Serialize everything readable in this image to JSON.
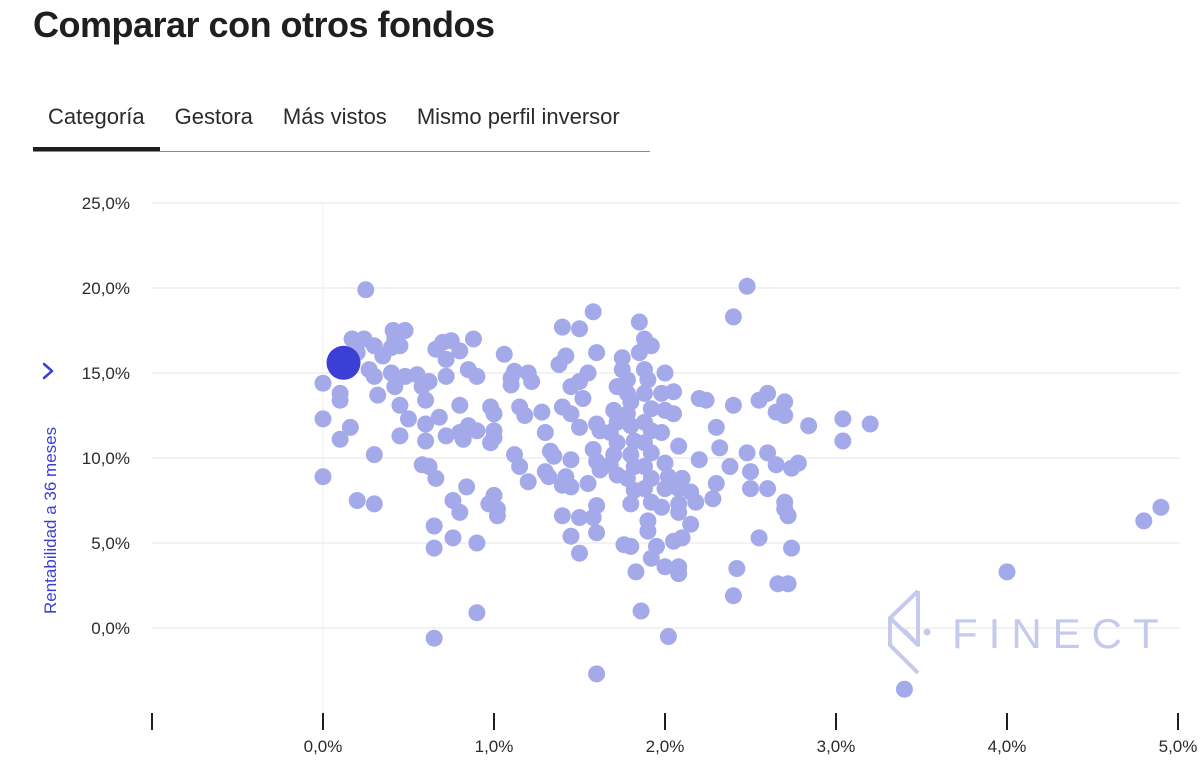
{
  "header": {
    "title": "Comparar con otros fondos"
  },
  "tabs": [
    {
      "label": "Categoría",
      "active": true
    },
    {
      "label": "Gestora",
      "active": false
    },
    {
      "label": "Más vistos",
      "active": false
    },
    {
      "label": "Mismo perfil inversor",
      "active": false
    }
  ],
  "watermark": {
    "text": "FINECT"
  },
  "colors": {
    "point": "#a4aae9",
    "highlight": "#3b3fd6",
    "grid": "#e6e6e6",
    "axis_label": "#3b3fd6"
  },
  "chart_data": {
    "type": "scatter",
    "xlabel": "",
    "ylabel": "Rentabilidad a 36 meses",
    "ylabel_icon": "chevron-right-icon",
    "xlim": [
      -1.0,
      5.1
    ],
    "ylim": [
      -5.0,
      25.0
    ],
    "x_ticks": [
      {
        "value": 0,
        "label": "0,0%"
      },
      {
        "value": 1,
        "label": "1,0%"
      },
      {
        "value": 2,
        "label": "2,0%"
      },
      {
        "value": 3,
        "label": "3,0%"
      },
      {
        "value": 4,
        "label": "4,0%"
      },
      {
        "value": 5,
        "label": "5,0%"
      }
    ],
    "y_ticks": [
      {
        "value": 25,
        "label": "25,0%"
      },
      {
        "value": 20,
        "label": "20,0%"
      },
      {
        "value": 15,
        "label": "15,0%"
      },
      {
        "value": 10,
        "label": "10,0%"
      },
      {
        "value": 5,
        "label": "5,0%"
      },
      {
        "value": 0,
        "label": "0,0%"
      }
    ],
    "grid": true,
    "highlight": {
      "x": 0.12,
      "y": 15.6
    },
    "points": [
      [
        0.0,
        14.4
      ],
      [
        0.0,
        12.3
      ],
      [
        0.0,
        8.9
      ],
      [
        0.1,
        13.8
      ],
      [
        0.1,
        13.4
      ],
      [
        0.1,
        11.1
      ],
      [
        0.16,
        11.8
      ],
      [
        0.2,
        7.5
      ],
      [
        0.25,
        19.9
      ],
      [
        0.17,
        17.0
      ],
      [
        0.24,
        17.0
      ],
      [
        0.2,
        16.2
      ],
      [
        0.3,
        16.6
      ],
      [
        0.27,
        15.2
      ],
      [
        0.35,
        16.0
      ],
      [
        0.3,
        14.8
      ],
      [
        0.32,
        13.7
      ],
      [
        0.3,
        10.2
      ],
      [
        0.3,
        7.3
      ],
      [
        0.41,
        17.5
      ],
      [
        0.42,
        17.0
      ],
      [
        0.4,
        16.5
      ],
      [
        0.45,
        16.6
      ],
      [
        0.48,
        17.5
      ],
      [
        0.4,
        15.0
      ],
      [
        0.48,
        14.8
      ],
      [
        0.42,
        14.2
      ],
      [
        0.45,
        13.1
      ],
      [
        0.5,
        12.3
      ],
      [
        0.45,
        11.3
      ],
      [
        0.55,
        14.9
      ],
      [
        0.58,
        14.2
      ],
      [
        0.6,
        13.4
      ],
      [
        0.62,
        14.5
      ],
      [
        0.6,
        12.0
      ],
      [
        0.6,
        11.0
      ],
      [
        0.58,
        9.6
      ],
      [
        0.62,
        9.5
      ],
      [
        0.66,
        8.8
      ],
      [
        0.65,
        6.0
      ],
      [
        0.65,
        4.7
      ],
      [
        0.65,
        -0.6
      ],
      [
        0.66,
        16.4
      ],
      [
        0.7,
        16.8
      ],
      [
        0.75,
        16.9
      ],
      [
        0.72,
        15.8
      ],
      [
        0.8,
        16.3
      ],
      [
        0.72,
        14.8
      ],
      [
        0.68,
        12.4
      ],
      [
        0.72,
        11.3
      ],
      [
        0.8,
        13.1
      ],
      [
        0.8,
        11.5
      ],
      [
        0.82,
        11.1
      ],
      [
        0.85,
        11.9
      ],
      [
        0.76,
        7.5
      ],
      [
        0.8,
        6.8
      ],
      [
        0.84,
        8.3
      ],
      [
        0.76,
        5.3
      ],
      [
        0.88,
        17.0
      ],
      [
        0.85,
        15.2
      ],
      [
        0.9,
        14.8
      ],
      [
        0.9,
        11.6
      ],
      [
        0.9,
        5.0
      ],
      [
        0.9,
        0.9
      ],
      [
        0.98,
        13.0
      ],
      [
        1.0,
        12.6
      ],
      [
        1.0,
        11.6
      ],
      [
        1.0,
        11.2
      ],
      [
        0.98,
        10.9
      ],
      [
        0.97,
        7.3
      ],
      [
        1.0,
        7.8
      ],
      [
        1.02,
        7.0
      ],
      [
        1.02,
        6.6
      ],
      [
        1.06,
        16.1
      ],
      [
        1.1,
        14.7
      ],
      [
        1.12,
        15.1
      ],
      [
        1.1,
        14.3
      ],
      [
        1.15,
        13.0
      ],
      [
        1.18,
        12.5
      ],
      [
        1.12,
        10.2
      ],
      [
        1.15,
        9.5
      ],
      [
        1.2,
        8.6
      ],
      [
        1.2,
        15.0
      ],
      [
        1.22,
        14.5
      ],
      [
        1.28,
        12.7
      ],
      [
        1.3,
        11.5
      ],
      [
        1.33,
        10.4
      ],
      [
        1.3,
        9.2
      ],
      [
        1.32,
        8.9
      ],
      [
        1.35,
        10.1
      ],
      [
        1.4,
        17.7
      ],
      [
        1.42,
        16.0
      ],
      [
        1.38,
        15.5
      ],
      [
        1.45,
        14.2
      ],
      [
        1.4,
        13.0
      ],
      [
        1.45,
        12.6
      ],
      [
        1.5,
        11.8
      ],
      [
        1.45,
        9.9
      ],
      [
        1.42,
        8.9
      ],
      [
        1.4,
        8.4
      ],
      [
        1.45,
        8.3
      ],
      [
        1.4,
        6.6
      ],
      [
        1.5,
        6.5
      ],
      [
        1.45,
        5.4
      ],
      [
        1.5,
        4.4
      ],
      [
        1.5,
        17.6
      ],
      [
        1.58,
        18.6
      ],
      [
        1.6,
        16.2
      ],
      [
        1.55,
        15.0
      ],
      [
        1.5,
        14.5
      ],
      [
        1.52,
        13.5
      ],
      [
        1.6,
        12.0
      ],
      [
        1.62,
        11.6
      ],
      [
        1.58,
        10.5
      ],
      [
        1.6,
        9.8
      ],
      [
        1.62,
        9.3
      ],
      [
        1.55,
        8.5
      ],
      [
        1.6,
        7.2
      ],
      [
        1.58,
        6.5
      ],
      [
        1.6,
        5.6
      ],
      [
        1.6,
        -2.7
      ],
      [
        1.72,
        14.2
      ],
      [
        1.7,
        12.8
      ],
      [
        1.72,
        12.1
      ],
      [
        1.68,
        11.5
      ],
      [
        1.72,
        10.9
      ],
      [
        1.7,
        10.2
      ],
      [
        1.68,
        9.6
      ],
      [
        1.72,
        9.0
      ],
      [
        1.75,
        15.2
      ],
      [
        1.75,
        15.9
      ],
      [
        1.78,
        14.6
      ],
      [
        1.78,
        13.8
      ],
      [
        1.8,
        13.3
      ],
      [
        1.78,
        12.6
      ],
      [
        1.8,
        11.9
      ],
      [
        1.82,
        11.0
      ],
      [
        1.8,
        10.2
      ],
      [
        1.82,
        9.5
      ],
      [
        1.78,
        8.8
      ],
      [
        1.82,
        8.1
      ],
      [
        1.8,
        7.3
      ],
      [
        1.76,
        4.9
      ],
      [
        1.8,
        4.8
      ],
      [
        1.83,
        3.3
      ],
      [
        1.86,
        1.0
      ],
      [
        1.85,
        18.0
      ],
      [
        1.88,
        17.0
      ],
      [
        1.92,
        16.6
      ],
      [
        1.85,
        16.2
      ],
      [
        1.88,
        15.2
      ],
      [
        1.9,
        14.6
      ],
      [
        1.88,
        13.8
      ],
      [
        1.92,
        12.9
      ],
      [
        1.88,
        12.1
      ],
      [
        1.92,
        11.6
      ],
      [
        1.88,
        10.9
      ],
      [
        1.92,
        10.3
      ],
      [
        1.88,
        9.5
      ],
      [
        1.92,
        8.8
      ],
      [
        1.88,
        8.2
      ],
      [
        1.92,
        7.4
      ],
      [
        1.9,
        6.3
      ],
      [
        1.9,
        5.7
      ],
      [
        1.95,
        4.8
      ],
      [
        1.92,
        4.1
      ],
      [
        2.0,
        15.0
      ],
      [
        1.98,
        13.8
      ],
      [
        2.0,
        12.8
      ],
      [
        1.98,
        11.5
      ],
      [
        2.0,
        9.7
      ],
      [
        2.02,
        8.9
      ],
      [
        2.0,
        8.2
      ],
      [
        1.98,
        7.1
      ],
      [
        2.05,
        5.1
      ],
      [
        2.0,
        3.6
      ],
      [
        2.02,
        -0.5
      ],
      [
        2.05,
        13.9
      ],
      [
        2.05,
        12.6
      ],
      [
        2.08,
        10.7
      ],
      [
        2.1,
        8.8
      ],
      [
        2.08,
        8.2
      ],
      [
        2.08,
        7.3
      ],
      [
        2.08,
        6.8
      ],
      [
        2.1,
        5.3
      ],
      [
        2.08,
        3.6
      ],
      [
        2.08,
        3.2
      ],
      [
        2.15,
        8.0
      ],
      [
        2.15,
        6.1
      ],
      [
        2.18,
        7.4
      ],
      [
        2.2,
        9.9
      ],
      [
        2.2,
        13.5
      ],
      [
        2.24,
        13.4
      ],
      [
        2.28,
        7.6
      ],
      [
        2.3,
        8.5
      ],
      [
        2.3,
        11.8
      ],
      [
        2.32,
        10.6
      ],
      [
        2.38,
        9.5
      ],
      [
        2.4,
        13.1
      ],
      [
        2.4,
        18.3
      ],
      [
        2.4,
        1.9
      ],
      [
        2.42,
        3.5
      ],
      [
        2.48,
        20.1
      ],
      [
        2.48,
        10.3
      ],
      [
        2.5,
        9.2
      ],
      [
        2.5,
        8.2
      ],
      [
        2.55,
        13.4
      ],
      [
        2.55,
        5.3
      ],
      [
        2.6,
        13.8
      ],
      [
        2.6,
        10.3
      ],
      [
        2.6,
        8.2
      ],
      [
        2.65,
        12.7
      ],
      [
        2.65,
        9.6
      ],
      [
        2.66,
        2.6
      ],
      [
        2.7,
        13.3
      ],
      [
        2.7,
        12.5
      ],
      [
        2.7,
        7.4
      ],
      [
        2.7,
        7.0
      ],
      [
        2.72,
        6.6
      ],
      [
        2.72,
        2.6
      ],
      [
        2.74,
        9.4
      ],
      [
        2.74,
        4.7
      ],
      [
        2.78,
        9.7
      ],
      [
        2.84,
        11.9
      ],
      [
        3.04,
        12.3
      ],
      [
        3.04,
        11.0
      ],
      [
        3.2,
        12.0
      ],
      [
        3.4,
        -3.6
      ],
      [
        4.0,
        3.3
      ],
      [
        4.8,
        6.3
      ],
      [
        4.9,
        7.1
      ]
    ]
  }
}
